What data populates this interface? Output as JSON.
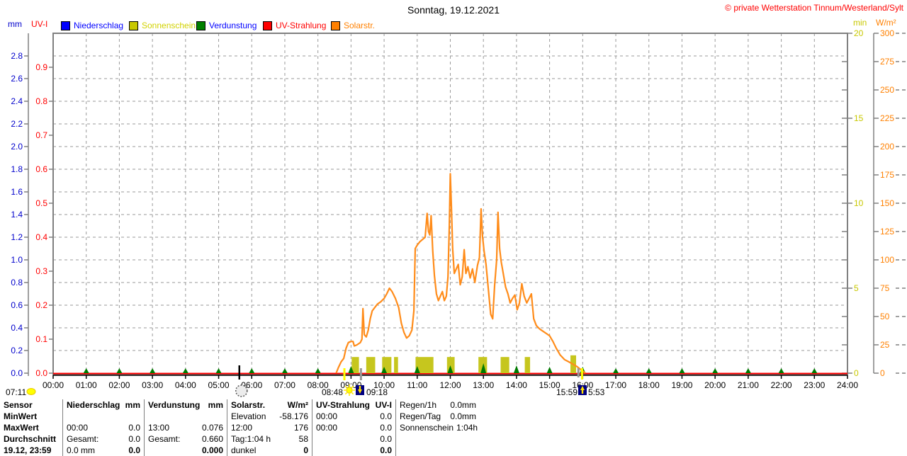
{
  "header": {
    "title": "Sonntag, 19.12.2021",
    "copyright": "© private Wetterstation Tinnum/Westerland/Sylt"
  },
  "axis_units": {
    "left1": "mm",
    "left2": "UV-I",
    "right1": "min",
    "right2": "W/m²"
  },
  "legend": [
    {
      "label": "Niederschlag",
      "color": "#0000ff",
      "text_color": "#0000ff"
    },
    {
      "label": "Sonnenschein",
      "color": "#c8c800",
      "text_color": "#d2d200"
    },
    {
      "label": "Verdunstung",
      "color": "#008000",
      "text_color": "#0000ff"
    },
    {
      "label": "UV-Strahlung",
      "color": "#ff0000",
      "text_color": "#ff0000"
    },
    {
      "label": "Solarstr.",
      "color": "#ff8000",
      "text_color": "#ff8000"
    }
  ],
  "chart_data": {
    "type": "line",
    "grid": true,
    "x_axis": {
      "range_hours": [
        0,
        24
      ],
      "labels": [
        "00:00",
        "01:00",
        "02:00",
        "03:00",
        "04:00",
        "05:00",
        "06:00",
        "07:00",
        "08:00",
        "09:00",
        "10:00",
        "11:00",
        "12:00",
        "13:00",
        "14:00",
        "15:00",
        "16:00",
        "17:00",
        "18:00",
        "19:00",
        "20:00",
        "21:00",
        "22:00",
        "23:00",
        "24:00"
      ]
    },
    "axes": {
      "mm": {
        "color": "#0000cc",
        "range": [
          0,
          3.0
        ],
        "ticks": [
          0.0,
          0.2,
          0.4,
          0.6,
          0.8,
          1.0,
          1.2,
          1.4,
          1.6,
          1.8,
          2.0,
          2.2,
          2.4,
          2.6,
          2.8
        ]
      },
      "uvi": {
        "color": "#ff0000",
        "range": [
          0,
          1.0
        ],
        "ticks": [
          0.0,
          0.1,
          0.2,
          0.3,
          0.4,
          0.5,
          0.6,
          0.7,
          0.8,
          0.9
        ]
      },
      "min": {
        "color": "#c8c800",
        "range": [
          0,
          20
        ],
        "ticks": [
          0,
          5,
          10,
          15,
          20
        ]
      },
      "wm2": {
        "color": "#ff8000",
        "range": [
          0,
          300
        ],
        "ticks": [
          0,
          25,
          50,
          75,
          100,
          125,
          150,
          175,
          200,
          225,
          250,
          275,
          300
        ]
      }
    },
    "series": [
      {
        "name": "Niederschlag",
        "type": "flatline",
        "axis": "mm",
        "color": "#0000ff",
        "value": 0.0
      },
      {
        "name": "UV-Strahlung",
        "type": "flatline",
        "axis": "uvi",
        "color": "#ff0000",
        "value": 0.0
      },
      {
        "name": "Sonnenschein",
        "type": "bars",
        "axis": "min",
        "color": "#c6c61e",
        "bars": [
          [
            9.02,
            9.24,
            0.95
          ],
          [
            9.46,
            9.73,
            0.95
          ],
          [
            9.94,
            10.22,
            0.95
          ],
          [
            10.3,
            10.42,
            0.95
          ],
          [
            10.95,
            11.49,
            0.95
          ],
          [
            11.9,
            12.13,
            0.95
          ],
          [
            12.85,
            13.11,
            0.95
          ],
          [
            13.52,
            13.78,
            0.95
          ],
          [
            14.25,
            14.41,
            0.95
          ],
          [
            15.63,
            15.8,
            1.05
          ]
        ]
      },
      {
        "name": "Verdunstung",
        "type": "markers",
        "axis": "mm",
        "color": "#007a00",
        "hours": [
          [
            1,
            7
          ],
          [
            2,
            7
          ],
          [
            3,
            7
          ],
          [
            4,
            7
          ],
          [
            5,
            7
          ],
          [
            6,
            7
          ],
          [
            7,
            7
          ],
          [
            8,
            7
          ],
          [
            9,
            10
          ],
          [
            10,
            9
          ],
          [
            11,
            10
          ],
          [
            12,
            11
          ],
          [
            13,
            14
          ],
          [
            14,
            11
          ],
          [
            15,
            9
          ],
          [
            16,
            9
          ],
          [
            17,
            7
          ],
          [
            18,
            7
          ],
          [
            19,
            7
          ],
          [
            20,
            7
          ],
          [
            21,
            7
          ],
          [
            22,
            7
          ],
          [
            23,
            7
          ]
        ]
      },
      {
        "name": "Solarstr.",
        "type": "line",
        "axis": "wm2",
        "color": "#ff8c1a",
        "points": [
          [
            8.55,
            0
          ],
          [
            8.62,
            5
          ],
          [
            8.7,
            10
          ],
          [
            8.78,
            13
          ],
          [
            8.85,
            22
          ],
          [
            8.92,
            27
          ],
          [
            9.0,
            28
          ],
          [
            9.06,
            28
          ],
          [
            9.1,
            24
          ],
          [
            9.18,
            25
          ],
          [
            9.28,
            27
          ],
          [
            9.33,
            30
          ],
          [
            9.36,
            57
          ],
          [
            9.4,
            34
          ],
          [
            9.46,
            32
          ],
          [
            9.52,
            38
          ],
          [
            9.58,
            48
          ],
          [
            9.64,
            55
          ],
          [
            9.72,
            58
          ],
          [
            9.8,
            61
          ],
          [
            9.9,
            63
          ],
          [
            10.0,
            66
          ],
          [
            10.08,
            70
          ],
          [
            10.16,
            75
          ],
          [
            10.24,
            72
          ],
          [
            10.34,
            66
          ],
          [
            10.44,
            58
          ],
          [
            10.52,
            44
          ],
          [
            10.6,
            36
          ],
          [
            10.68,
            31
          ],
          [
            10.76,
            33
          ],
          [
            10.84,
            38
          ],
          [
            10.9,
            55
          ],
          [
            10.94,
            110
          ],
          [
            11.0,
            113
          ],
          [
            11.08,
            116
          ],
          [
            11.16,
            118
          ],
          [
            11.24,
            120
          ],
          [
            11.3,
            141
          ],
          [
            11.34,
            125
          ],
          [
            11.38,
            122
          ],
          [
            11.42,
            139
          ],
          [
            11.47,
            108
          ],
          [
            11.52,
            86
          ],
          [
            11.58,
            70
          ],
          [
            11.64,
            64
          ],
          [
            11.7,
            68
          ],
          [
            11.76,
            72
          ],
          [
            11.82,
            64
          ],
          [
            11.88,
            68
          ],
          [
            11.93,
            85
          ],
          [
            11.97,
            130
          ],
          [
            12.0,
            176
          ],
          [
            12.03,
            150
          ],
          [
            12.07,
            110
          ],
          [
            12.12,
            88
          ],
          [
            12.18,
            92
          ],
          [
            12.24,
            96
          ],
          [
            12.3,
            78
          ],
          [
            12.36,
            85
          ],
          [
            12.42,
            109
          ],
          [
            12.47,
            88
          ],
          [
            12.53,
            94
          ],
          [
            12.6,
            84
          ],
          [
            12.67,
            92
          ],
          [
            12.74,
            80
          ],
          [
            12.82,
            95
          ],
          [
            12.88,
            102
          ],
          [
            12.93,
            145
          ],
          [
            12.97,
            122
          ],
          [
            13.02,
            108
          ],
          [
            13.08,
            96
          ],
          [
            13.15,
            74
          ],
          [
            13.22,
            52
          ],
          [
            13.28,
            48
          ],
          [
            13.34,
            78
          ],
          [
            13.4,
            100
          ],
          [
            13.44,
            142
          ],
          [
            13.49,
            110
          ],
          [
            13.54,
            98
          ],
          [
            13.6,
            88
          ],
          [
            13.67,
            76
          ],
          [
            13.74,
            70
          ],
          [
            13.81,
            62
          ],
          [
            13.88,
            66
          ],
          [
            13.95,
            69
          ],
          [
            14.02,
            56
          ],
          [
            14.09,
            62
          ],
          [
            14.16,
            79
          ],
          [
            14.23,
            68
          ],
          [
            14.31,
            62
          ],
          [
            14.38,
            66
          ],
          [
            14.45,
            70
          ],
          [
            14.52,
            48
          ],
          [
            14.6,
            42
          ],
          [
            14.7,
            39
          ],
          [
            14.8,
            37
          ],
          [
            14.9,
            35
          ],
          [
            15.0,
            33
          ],
          [
            15.1,
            28
          ],
          [
            15.2,
            22
          ],
          [
            15.32,
            16
          ],
          [
            15.45,
            12
          ],
          [
            15.58,
            10
          ],
          [
            15.7,
            8
          ],
          [
            15.82,
            6
          ],
          [
            15.95,
            3
          ],
          [
            16.08,
            0
          ]
        ]
      }
    ]
  },
  "annotations": {
    "day_length": "07:11",
    "sunrise": "08:48",
    "sunrise_plus": "09:18",
    "sunset": "15:59",
    "moon_time": "5:53",
    "times": {
      "moon_t": 5.69,
      "sunrise_t": 8.8,
      "grey_t": 9.3,
      "sunset_grey_t": 15.87,
      "sunset_t": 15.98
    }
  },
  "table": {
    "row_headers": [
      "Sensor",
      "MinWert",
      "MaxWert",
      "Durchschnitt",
      "19.12, 23:59"
    ],
    "columns": [
      {
        "name": "niederschlag",
        "plain": false,
        "lines": [
          [
            "Niederschlag",
            "mm"
          ],
          [
            "",
            ""
          ],
          [
            "00:00",
            "0.0"
          ],
          [
            "Gesamt:",
            "0.0"
          ],
          [
            "0.0 mm",
            "0.0"
          ]
        ]
      },
      {
        "name": "verdunstung",
        "plain": false,
        "lines": [
          [
            "Verdunstung",
            "mm"
          ],
          [
            "",
            ""
          ],
          [
            "13:00",
            "0.076"
          ],
          [
            "Gesamt:",
            "0.660"
          ],
          [
            "",
            "0.000"
          ]
        ]
      },
      {
        "name": "solarstr",
        "plain": false,
        "lines": [
          [
            "Solarstr.",
            "W/m²"
          ],
          [
            "Elevation",
            "-58.176"
          ],
          [
            "12:00",
            "176"
          ],
          [
            "Tag:1:04 h",
            "58"
          ],
          [
            "dunkel",
            "0"
          ]
        ]
      },
      {
        "name": "uv-strahlung",
        "plain": false,
        "lines": [
          [
            "UV-Strahlung",
            "UV-I"
          ],
          [
            "00:00",
            "0.0"
          ],
          [
            "00:00",
            "0.0"
          ],
          [
            "",
            "0.0"
          ],
          [
            "",
            "0.0"
          ]
        ]
      },
      {
        "name": "regen",
        "plain": true,
        "lines": [
          [
            "Regen/1h",
            "0.0mm"
          ],
          [
            "Regen/Tag",
            "0.0mm"
          ],
          [
            "Sonnenschein",
            "1:04h"
          ],
          [
            "",
            ""
          ],
          [
            "",
            ""
          ]
        ]
      }
    ]
  }
}
